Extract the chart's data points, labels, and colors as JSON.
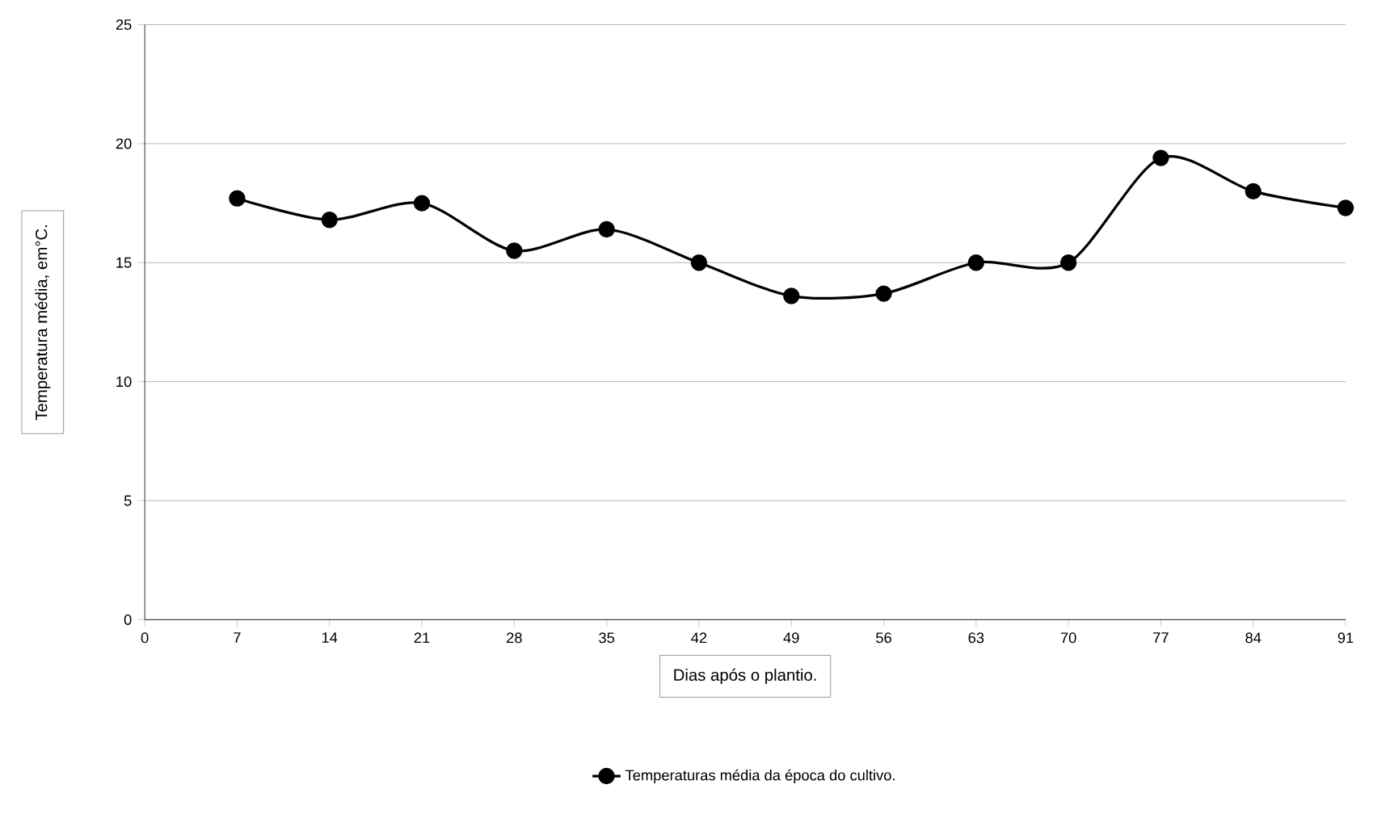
{
  "chart_data": {
    "type": "line",
    "xlabel": "Dias após o plantio.",
    "ylabel": "Temperatura média, em°C.",
    "x": [
      7,
      14,
      21,
      28,
      35,
      42,
      49,
      56,
      63,
      70,
      77,
      84,
      91
    ],
    "series": [
      {
        "name": "Temperaturas média da época do cultivo.",
        "color": "#000000",
        "values": [
          17.7,
          16.8,
          17.5,
          15.5,
          16.4,
          15.0,
          13.6,
          13.7,
          15.0,
          15.0,
          19.4,
          18.0,
          17.3
        ]
      }
    ],
    "xlim": [
      0,
      91
    ],
    "xticks": [
      0,
      7,
      14,
      21,
      28,
      35,
      42,
      49,
      56,
      63,
      70,
      77,
      84,
      91
    ],
    "ylim": [
      0,
      25
    ],
    "yticks": [
      0,
      5,
      10,
      15,
      20,
      25
    ],
    "grid": "y",
    "legend": "bottom",
    "marker": "circle",
    "line_style": "solid"
  }
}
